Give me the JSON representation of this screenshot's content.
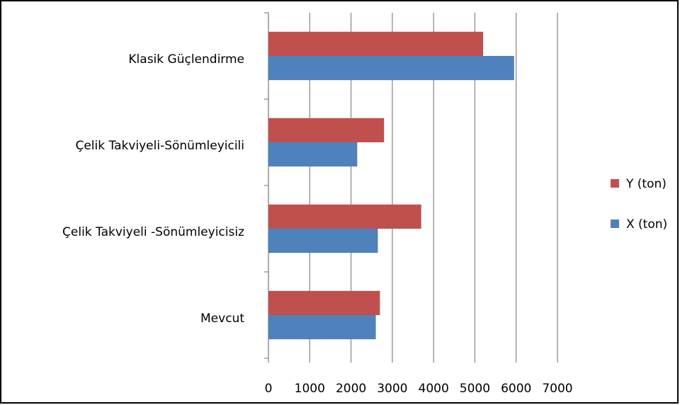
{
  "chart_data": {
    "type": "bar",
    "orientation": "horizontal",
    "categories": [
      "Mevcut",
      "Çelik Takviyeli -Sönümleyicisiz",
      "Çelik Takviyeli-Sönümleyicili",
      "Klasik Güçlendirme"
    ],
    "series": [
      {
        "name": "Y (ton)",
        "color": "#c0504d",
        "values": [
          2700,
          3700,
          2800,
          5200
        ]
      },
      {
        "name": "X (ton)",
        "color": "#4f81bd",
        "values": [
          2600,
          2650,
          2150,
          5950
        ]
      }
    ],
    "xlim": [
      0,
      7000
    ],
    "xticks": [
      0,
      1000,
      2000,
      3000,
      4000,
      5000,
      6000,
      7000
    ],
    "grid": true,
    "legend": "right"
  }
}
